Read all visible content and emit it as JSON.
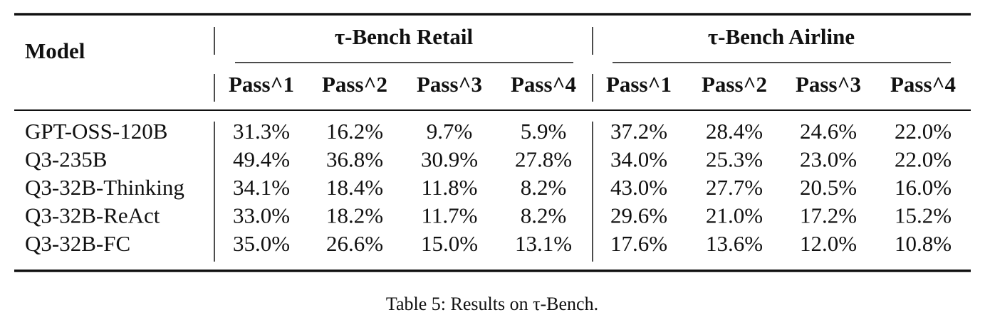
{
  "table": {
    "model_header": "Model",
    "groups": [
      "τ-Bench Retail",
      "τ-Bench Airline"
    ],
    "columns": [
      "Pass^1",
      "Pass^2",
      "Pass^3",
      "Pass^4",
      "Pass^1",
      "Pass^2",
      "Pass^3",
      "Pass^4"
    ],
    "rows": [
      {
        "model": "GPT-OSS-120B",
        "values": [
          "31.3%",
          "16.2%",
          "9.7%",
          "5.9%",
          "37.2%",
          "28.4%",
          "24.6%",
          "22.0%"
        ]
      },
      {
        "model": "Q3-235B",
        "values": [
          "49.4%",
          "36.8%",
          "30.9%",
          "27.8%",
          "34.0%",
          "25.3%",
          "23.0%",
          "22.0%"
        ]
      },
      {
        "model": "Q3-32B-Thinking",
        "values": [
          "34.1%",
          "18.4%",
          "11.8%",
          "8.2%",
          "43.0%",
          "27.7%",
          "20.5%",
          "16.0%"
        ]
      },
      {
        "model": "Q3-32B-ReAct",
        "values": [
          "33.0%",
          "18.2%",
          "11.7%",
          "8.2%",
          "29.6%",
          "21.0%",
          "17.2%",
          "15.2%"
        ]
      },
      {
        "model": "Q3-32B-FC",
        "values": [
          "35.0%",
          "26.6%",
          "15.0%",
          "13.1%",
          "17.6%",
          "13.6%",
          "12.0%",
          "10.8%"
        ]
      }
    ],
    "caption": "Table 5: Results on τ-Bench."
  }
}
